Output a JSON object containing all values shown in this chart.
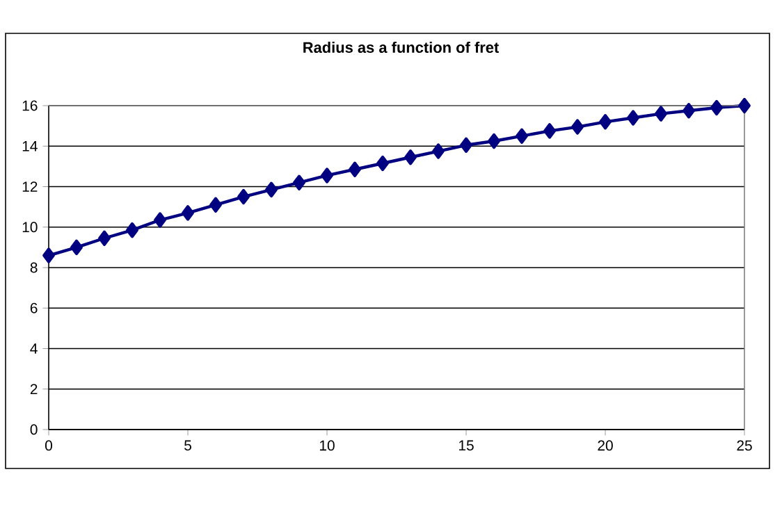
{
  "chart_data": {
    "type": "line",
    "title": "Radius as a function of fret",
    "x": [
      0,
      1,
      2,
      3,
      4,
      5,
      6,
      7,
      8,
      9,
      10,
      11,
      12,
      13,
      14,
      15,
      16,
      17,
      18,
      19,
      20,
      21,
      22,
      23,
      24,
      25
    ],
    "series": [
      {
        "color": "#000080",
        "values": [
          8.6,
          9.0,
          9.45,
          9.85,
          10.35,
          10.7,
          11.1,
          11.5,
          11.85,
          12.2,
          12.55,
          12.85,
          13.15,
          13.45,
          13.75,
          14.05,
          14.25,
          14.5,
          14.75,
          14.95,
          15.2,
          15.4,
          15.6,
          15.75,
          15.9,
          16.0
        ]
      }
    ],
    "xlim": [
      0,
      25
    ],
    "xticks": [
      0,
      5,
      10,
      15,
      20,
      25
    ],
    "ylim": [
      0,
      16
    ],
    "yticks": [
      0,
      2,
      4,
      6,
      8,
      10,
      12,
      14,
      16
    ],
    "grid": "y",
    "marker": "diamond",
    "line_style": "solid"
  }
}
